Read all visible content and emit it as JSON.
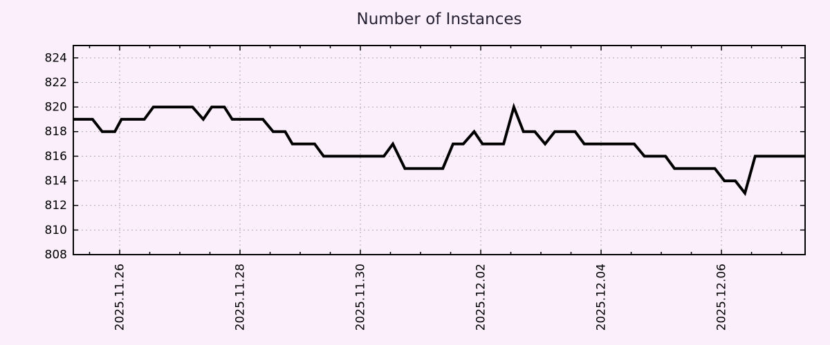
{
  "chart_data": {
    "type": "line",
    "title": "Number of Instances",
    "grid": {
      "show": true,
      "color": "#a8a8a8",
      "dash": "2 4"
    },
    "colors": {
      "background": "#faeffb",
      "line": "#000000",
      "border": "#000000",
      "text": "#000000",
      "title": "#262233"
    },
    "x_axis": {
      "unit": "days-from-plot-left-edge",
      "range": [
        0,
        12.16
      ],
      "major_ticks": [
        {
          "pos": 0.77,
          "label": "2025.11.26"
        },
        {
          "pos": 2.77,
          "label": "2025.11.28"
        },
        {
          "pos": 4.77,
          "label": "2025.11.30"
        },
        {
          "pos": 6.77,
          "label": "2025.12.02"
        },
        {
          "pos": 8.77,
          "label": "2025.12.04"
        },
        {
          "pos": 10.77,
          "label": "2025.12.06"
        }
      ],
      "minor_tick_start": 0.27,
      "minor_tick_step": 0.5
    },
    "y_axis": {
      "range": [
        808,
        825
      ],
      "major_ticks": [
        808,
        810,
        812,
        814,
        816,
        818,
        820,
        822,
        824
      ]
    },
    "series": [
      {
        "name": "instances",
        "color": "#000000",
        "points": [
          [
            0.0,
            819
          ],
          [
            0.32,
            819
          ],
          [
            0.48,
            818
          ],
          [
            0.69,
            818
          ],
          [
            0.8,
            819
          ],
          [
            1.18,
            819
          ],
          [
            1.33,
            820
          ],
          [
            1.98,
            820
          ],
          [
            2.16,
            819
          ],
          [
            2.3,
            820
          ],
          [
            2.51,
            820
          ],
          [
            2.64,
            819
          ],
          [
            3.15,
            819
          ],
          [
            3.32,
            818
          ],
          [
            3.52,
            818
          ],
          [
            3.64,
            817
          ],
          [
            4.01,
            817
          ],
          [
            4.16,
            816
          ],
          [
            5.16,
            816
          ],
          [
            5.31,
            817
          ],
          [
            5.51,
            815
          ],
          [
            6.14,
            815
          ],
          [
            6.31,
            817
          ],
          [
            6.48,
            817
          ],
          [
            6.66,
            818
          ],
          [
            6.8,
            817
          ],
          [
            7.15,
            817
          ],
          [
            7.32,
            820
          ],
          [
            7.48,
            818
          ],
          [
            7.67,
            818
          ],
          [
            7.84,
            817
          ],
          [
            8.0,
            818
          ],
          [
            8.34,
            818
          ],
          [
            8.49,
            817
          ],
          [
            9.32,
            817
          ],
          [
            9.49,
            816
          ],
          [
            9.84,
            816
          ],
          [
            9.99,
            815
          ],
          [
            10.66,
            815
          ],
          [
            10.82,
            814
          ],
          [
            11.0,
            814
          ],
          [
            11.16,
            813
          ],
          [
            11.33,
            816
          ],
          [
            12.16,
            816
          ]
        ]
      }
    ]
  }
}
